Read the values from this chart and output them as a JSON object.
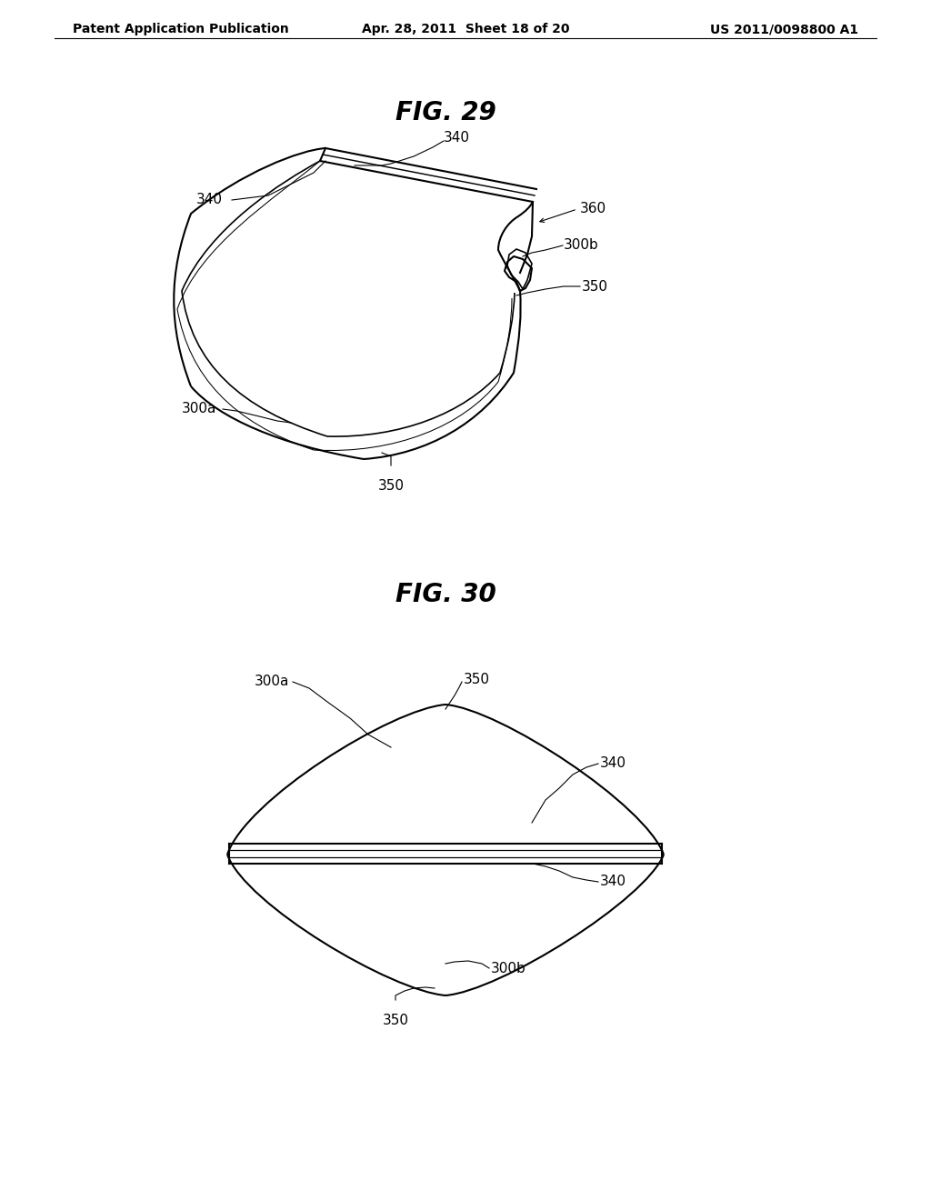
{
  "header_left": "Patent Application Publication",
  "header_mid": "Apr. 28, 2011  Sheet 18 of 20",
  "header_right": "US 2011/0098800 A1",
  "fig29_title": "FIG. 29",
  "fig30_title": "FIG. 30",
  "bg_color": "#ffffff",
  "line_color": "#000000",
  "line_width": 1.5,
  "label_fontsize": 11,
  "title_fontsize": 20,
  "header_fontsize": 10
}
